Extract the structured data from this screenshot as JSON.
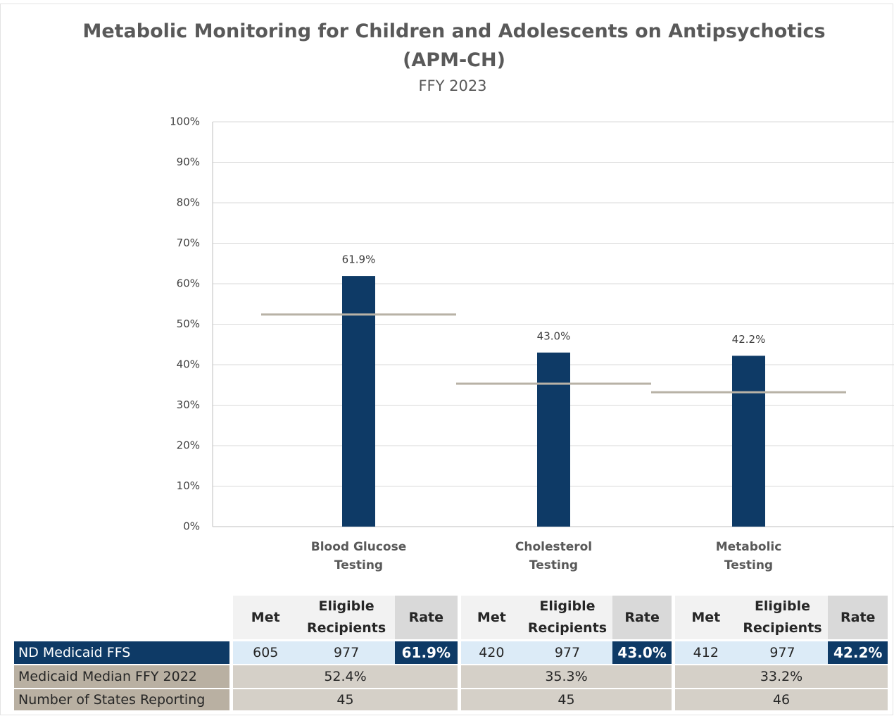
{
  "chart_data": {
    "type": "bar",
    "title": "Metabolic Monitoring for Children and Adolescents on Antipsychotics (APM-CH)",
    "subtitle": "FFY 2023",
    "categories": [
      "Blood Glucose Testing",
      "Cholesterol Testing",
      "Metabolic Testing"
    ],
    "series": [
      {
        "color": "#0e3a66",
        "values": [
          61.9,
          43.0,
          42.2
        ],
        "value_labels": [
          "61.9%",
          "43.0%",
          "42.2%"
        ]
      },
      {
        "color": "#b8b2a6",
        "style": "median-line",
        "values": [
          52.4,
          35.3,
          33.2
        ]
      }
    ],
    "ylim": [
      0,
      100
    ],
    "yticks": [
      {
        "value": 0,
        "label": "0%"
      },
      {
        "value": 10,
        "label": "10%"
      },
      {
        "value": 20,
        "label": "20%"
      },
      {
        "value": 30,
        "label": "30%"
      },
      {
        "value": 40,
        "label": "40%"
      },
      {
        "value": 50,
        "label": "50%"
      },
      {
        "value": 60,
        "label": "60%"
      },
      {
        "value": 70,
        "label": "70%"
      },
      {
        "value": 80,
        "label": "80%"
      },
      {
        "value": 90,
        "label": "90%"
      },
      {
        "value": 100,
        "label": "100%"
      }
    ],
    "grid": true
  },
  "table": {
    "column_headers": [
      "Met",
      "Eligible Recipients",
      "Rate"
    ],
    "rows": [
      {
        "label": "ND Medicaid FFS",
        "cells": [
          [
            "605",
            "977",
            "61.9%"
          ],
          [
            "420",
            "977",
            "43.0%"
          ],
          [
            "412",
            "977",
            "42.2%"
          ]
        ]
      },
      {
        "label": "Medicaid Median FFY 2022",
        "cells": [
          "52.4%",
          "35.3%",
          "33.2%"
        ]
      },
      {
        "label": "Number of States Reporting",
        "cells": [
          "45",
          "45",
          "46"
        ]
      }
    ]
  }
}
